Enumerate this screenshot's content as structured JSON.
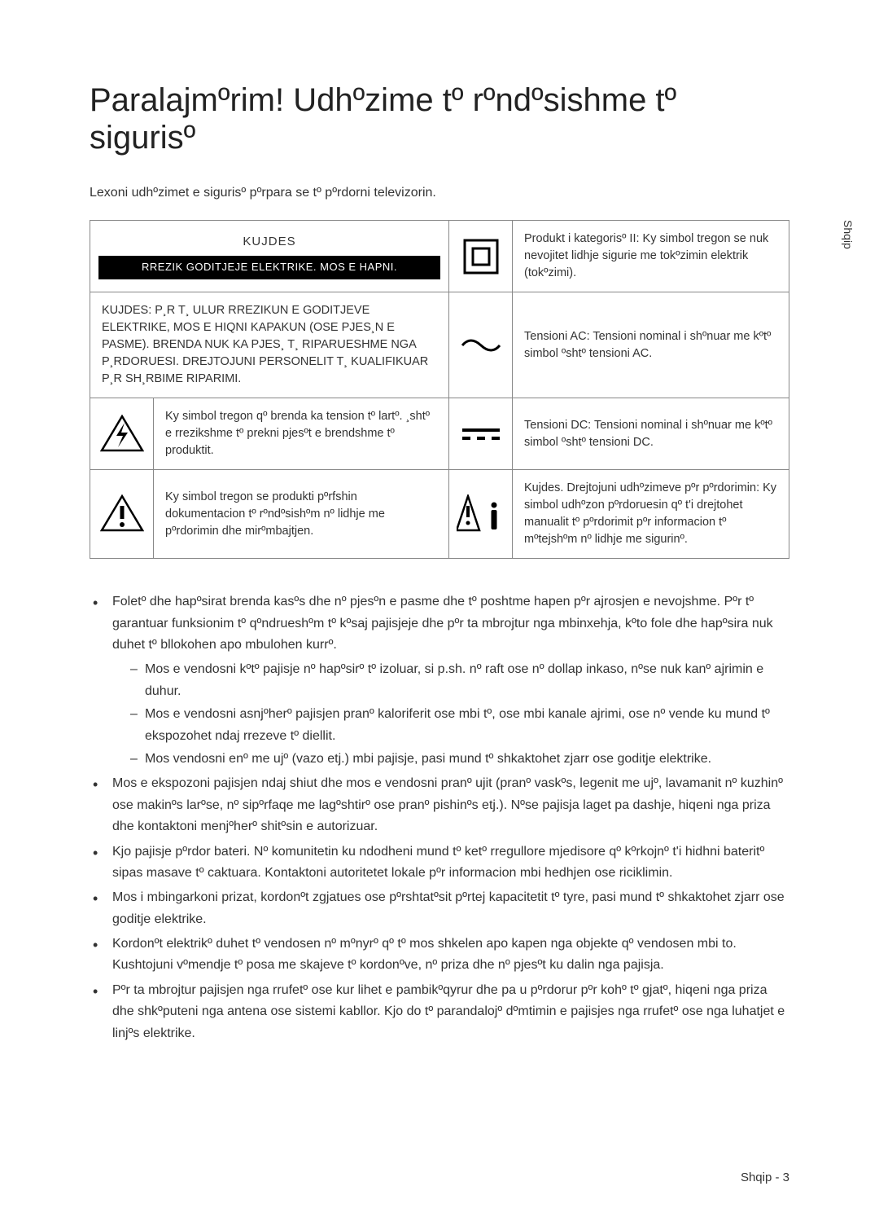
{
  "title": "Paralajmºrim! Udhºzime tº rºndºsishme tº sigurisº",
  "intro": "Lexoni udhºzimet e sigurisº pºrpara se tº pºrdorni televizorin.",
  "tab": "Shqip",
  "table": {
    "kujdes": "KUJDES",
    "kujdes_sub": "RREZIK GODITJEJE ELEKTRIKE. MOS E HAPNI.",
    "class2": "Produkt i kategorisº II: Ky simbol tregon se nuk nevojitet lidhje sigurie me tokºzimin elektrik (tokºzimi).",
    "caution_long": "KUJDES: P¸R T¸ ULUR RREZIKUN E GODITJEVE ELEKTRIKE, MOS E HIQNI KAPAKUN (OSE PJES¸N E PASME). BRENDA NUK KA PJES¸ T¸ RIPARUESHME NGA P¸RDORUESI. DREJTOJUNI PERSONELIT T¸ KUALIFIKUAR P¸R SH¸RBIME RIPARIMI.",
    "ac": "Tensioni AC: Tensioni nominal i shºnuar me kºtº simbol ºshtº tensioni AC.",
    "dc": "Tensioni DC: Tensioni nominal i shºnuar me kºtº simbol ºshtº tensioni DC.",
    "bolt": "Ky simbol tregon qº brenda ka tension tº lartº. ¸shtº e rrezikshme tº prekni pjesºt e brendshme tº produktit.",
    "excl": "Ky simbol tregon se produkti pºrfshin dokumentacion tº rºndºsishºm nº lidhje me pºrdorimin dhe mirºmbajtjen.",
    "manual": "Kujdes. Drejtojuni udhºzimeve pºr pºrdorimin: Ky simbol udhºzon pºrdoruesin qº t'i drejtohet manualit tº pºrdorimit pºr informacion tº mºtejshºm nº lidhje me sigurinº."
  },
  "bullets": [
    {
      "text": "Foletº dhe hapºsirat brenda kasºs dhe nº pjesºn e pasme dhe tº poshtme hapen pºr ajrosjen e nevojshme. Pºr tº garantuar funksionim tº qºndrueshºm tº kºsaj pajisjeje dhe pºr ta mbrojtur nga mbinxehja, kºto fole dhe hapºsira nuk duhet tº bllokohen apo mbulohen kurrº.",
      "sub": [
        "Mos e vendosni kºtº pajisje nº hapºsirº tº izoluar, si p.sh. nº raft ose nº dollap inkaso, nºse nuk kanº ajrimin e duhur.",
        "Mos e vendosni asnjºherº pajisjen pranº kaloriferit ose mbi tº, ose mbi kanale ajrimi, ose nº vende ku mund tº ekspozohet ndaj rrezeve tº diellit.",
        "Mos vendosni enº me ujº (vazo etj.) mbi pajisje, pasi mund tº shkaktohet zjarr ose goditje elektrike."
      ]
    },
    {
      "text": "Mos e ekspozoni pajisjen ndaj shiut dhe mos e vendosni pranº ujit (pranº vaskºs, legenit me ujº, lavamanit nº kuzhinº ose makinºs larºse, nº sipºrfaqe me lagºshtirº ose pranº pishinºs etj.). Nºse pajisja laget pa dashje, hiqeni nga priza dhe kontaktoni menjºherº shitºsin e autorizuar."
    },
    {
      "text": "Kjo pajisje pºrdor bateri. Nº komunitetin ku ndodheni mund tº ketº rregullore mjedisore qº kºrkojnº t'i hidhni bateritº sipas masave tº caktuara. Kontaktoni autoritetet lokale pºr informacion mbi hedhjen ose riciklimin."
    },
    {
      "text": "Mos i mbingarkoni prizat, kordonºt zgjatues ose pºrshtatºsit pºrtej kapacitetit tº tyre, pasi mund tº shkaktohet zjarr ose goditje elektrike."
    },
    {
      "text": "Kordonºt elektrikº duhet tº vendosen nº mºnyrº qº tº mos shkelen apo kapen nga objekte qº vendosen mbi to. Kushtojuni vºmendje tº posa me skajeve tº kordonºve, nº priza dhe nº pjesºt ku dalin nga pajisja."
    },
    {
      "text": "Pºr ta mbrojtur pajisjen nga rrufetº ose kur lihet e pambikºqyrur dhe pa u pºrdorur pºr kohº tº gjatº, hiqeni nga priza dhe shkºputeni nga antena ose sistemi kabllor. Kjo do tº parandalojº dºmtimin e pajisjes nga rrufetº ose nga luhatjet e linjºs elektrike."
    }
  ],
  "footer": "Shqip - 3"
}
